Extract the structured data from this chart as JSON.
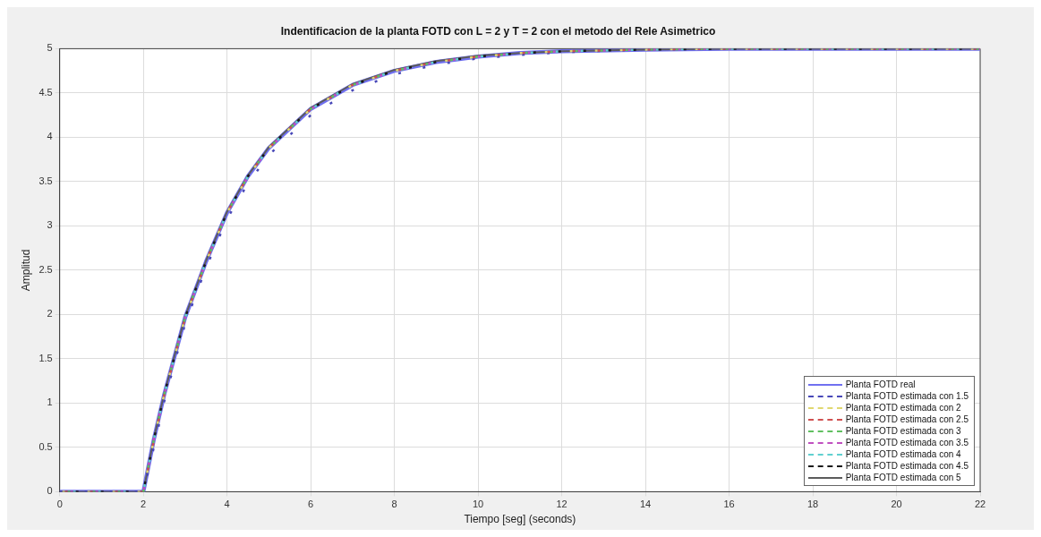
{
  "chart_data": {
    "type": "line",
    "title": "Indentificacion de la planta FOTD con L = 2 y T = 2 con el metodo del Rele Asimetrico",
    "xlabel": "Tiempo [seg] (seconds)",
    "ylabel": "Amplitud",
    "x": [
      0,
      1,
      1.9,
      2,
      2.25,
      2.5,
      3,
      3.5,
      4,
      4.5,
      5,
      6,
      7,
      8,
      9,
      10,
      11,
      12,
      14,
      16,
      18,
      20,
      22
    ],
    "xlim": [
      0,
      22
    ],
    "xticks": [
      0,
      2,
      4,
      6,
      8,
      10,
      12,
      14,
      16,
      18,
      20,
      22
    ],
    "ylim": [
      0,
      5
    ],
    "yticks": [
      0,
      0.5,
      1,
      1.5,
      2,
      2.5,
      3,
      3.5,
      4,
      4.5,
      5
    ],
    "grid": true,
    "legend": "bottom right",
    "marker": "none",
    "series": [
      {
        "name": "Planta FOTD real",
        "color": "#7070f0",
        "line_style": "solid",
        "values": [
          0,
          0,
          0,
          0,
          0.59,
          1.1,
          1.97,
          2.6,
          3.15,
          3.56,
          3.88,
          4.32,
          4.59,
          4.75,
          4.85,
          4.91,
          4.95,
          4.97,
          4.99,
          5,
          5,
          5,
          5
        ]
      },
      {
        "name": "Planta FOTD estimada con 1.5",
        "color": "#4848b8",
        "line_style": "dashed",
        "values": [
          0,
          0,
          0,
          0,
          0.5,
          1.02,
          1.9,
          2.53,
          3.08,
          3.48,
          3.8,
          4.25,
          4.53,
          4.71,
          4.82,
          4.89,
          4.93,
          4.96,
          4.99,
          5,
          5,
          5,
          5
        ]
      },
      {
        "name": "Planta FOTD estimada con 2",
        "color": "#e0d870",
        "line_style": "dashed",
        "values": [
          0,
          0,
          0,
          0,
          0.59,
          1.1,
          1.97,
          2.6,
          3.15,
          3.56,
          3.88,
          4.32,
          4.59,
          4.75,
          4.85,
          4.91,
          4.95,
          4.97,
          4.99,
          5,
          5,
          5,
          5
        ]
      },
      {
        "name": "Planta FOTD estimada con 2.5",
        "color": "#d05050",
        "line_style": "dashed",
        "values": [
          0,
          0,
          0,
          0,
          0.57,
          1.09,
          1.96,
          2.6,
          3.15,
          3.56,
          3.88,
          4.32,
          4.59,
          4.75,
          4.85,
          4.91,
          4.95,
          4.97,
          4.99,
          5,
          5,
          5,
          5
        ]
      },
      {
        "name": "Planta FOTD estimada con 3",
        "color": "#60c060",
        "line_style": "dashed",
        "values": [
          0,
          0,
          0,
          0,
          0.59,
          1.1,
          1.97,
          2.6,
          3.15,
          3.56,
          3.88,
          4.32,
          4.59,
          4.75,
          4.85,
          4.91,
          4.95,
          4.97,
          4.99,
          5,
          5,
          5,
          5
        ]
      },
      {
        "name": "Planta FOTD estimada con 3.5",
        "color": "#c050c0",
        "line_style": "dashed",
        "values": [
          0,
          0,
          0,
          0,
          0.59,
          1.1,
          1.97,
          2.6,
          3.15,
          3.56,
          3.88,
          4.32,
          4.59,
          4.75,
          4.85,
          4.91,
          4.95,
          4.97,
          4.99,
          5,
          5,
          5,
          5
        ]
      },
      {
        "name": "Planta FOTD estimada con 4",
        "color": "#60d0d0",
        "line_style": "dashed",
        "values": [
          0,
          0,
          0,
          0,
          0.59,
          1.1,
          1.97,
          2.6,
          3.15,
          3.56,
          3.88,
          4.32,
          4.59,
          4.75,
          4.85,
          4.91,
          4.95,
          4.97,
          4.99,
          5,
          5,
          5,
          5
        ]
      },
      {
        "name": "Planta FOTD estimada con 4.5",
        "color": "#1a1a1a",
        "line_style": "dashed",
        "values": [
          0,
          0,
          0,
          0,
          0.59,
          1.1,
          1.97,
          2.6,
          3.15,
          3.56,
          3.88,
          4.32,
          4.59,
          4.75,
          4.85,
          4.91,
          4.95,
          4.97,
          4.99,
          5,
          5,
          5,
          5
        ]
      },
      {
        "name": "Planta FOTD estimada con 5",
        "color": "#5c5c5c",
        "line_style": "solid",
        "values": [
          0,
          0,
          0,
          0,
          0.6,
          1.11,
          1.98,
          2.61,
          3.16,
          3.57,
          3.89,
          4.33,
          4.6,
          4.76,
          4.86,
          4.92,
          4.95,
          4.97,
          4.99,
          5,
          5,
          5,
          5
        ]
      }
    ]
  }
}
